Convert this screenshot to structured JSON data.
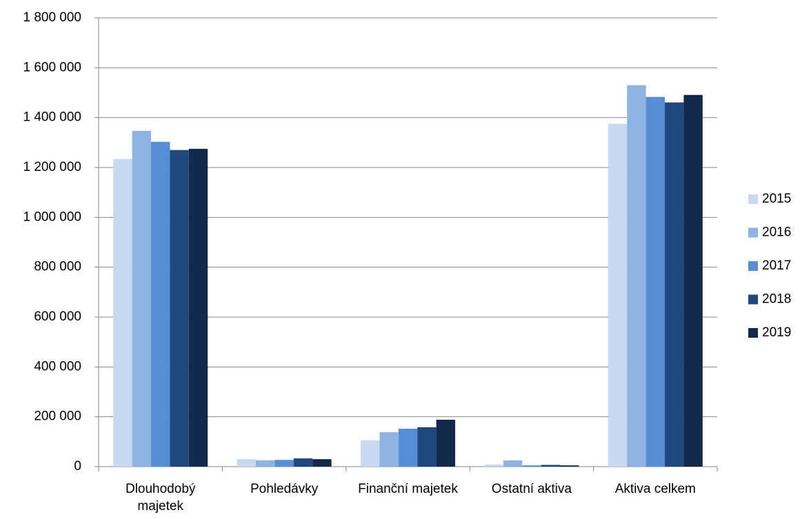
{
  "chart_data": {
    "type": "bar",
    "categories": [
      "Dlouhodobý majetek",
      "Pohledávky",
      "Finanční majetek",
      "Ostatní aktiva",
      "Aktiva celkem"
    ],
    "series": [
      {
        "name": "2015",
        "color": "#c6d9f1",
        "values": [
          1234000,
          30000,
          105000,
          8000,
          1375000
        ]
      },
      {
        "name": "2016",
        "color": "#8db3e2",
        "values": [
          1347000,
          25000,
          138000,
          25000,
          1530000
        ]
      },
      {
        "name": "2017",
        "color": "#558ed5",
        "values": [
          1303000,
          27000,
          152000,
          5000,
          1483000
        ]
      },
      {
        "name": "2018",
        "color": "#1f497d",
        "values": [
          1270000,
          33000,
          158000,
          7000,
          1461000
        ]
      },
      {
        "name": "2019",
        "color": "#13294b",
        "values": [
          1275000,
          30000,
          188000,
          5000,
          1491000
        ]
      }
    ],
    "ylim": [
      0,
      1800000
    ],
    "yticks": [
      0,
      {
        "value": 200000,
        "label": "200 000"
      },
      {
        "value": 400000,
        "label": "400 000"
      },
      {
        "value": 600000,
        "label": "600 000"
      },
      {
        "value": 800000,
        "label": "800 000"
      },
      {
        "value": 1000000,
        "label": "1 000 000"
      },
      {
        "value": 1200000,
        "label": "1 200 000"
      },
      {
        "value": 1400000,
        "label": "1 400 000"
      },
      {
        "value": 1600000,
        "label": "1 600 000"
      },
      {
        "value": 1800000,
        "label": "1 800 000"
      }
    ],
    "grid": true,
    "legend": "right"
  }
}
